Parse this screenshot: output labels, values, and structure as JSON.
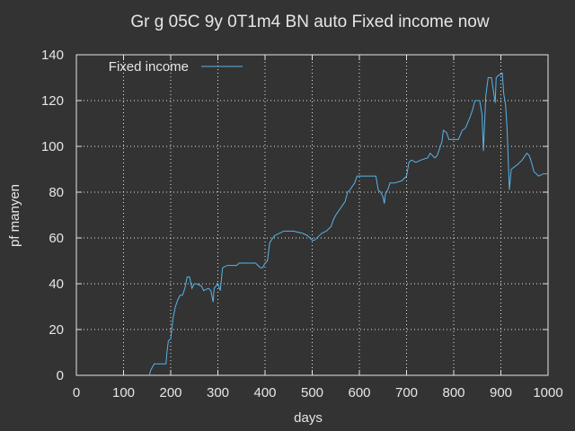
{
  "chart_data": {
    "type": "line",
    "title": "Gr g 05C 9y 0T1m4 BN auto Fixed income now",
    "x_label": "days",
    "y_label": "pf manyen",
    "xlim": [
      0,
      1000
    ],
    "xticks": [
      0,
      100,
      200,
      300,
      400,
      500,
      600,
      700,
      800,
      900,
      1000
    ],
    "ylim": [
      0,
      140
    ],
    "yticks": [
      0,
      20,
      40,
      60,
      80,
      100,
      120,
      140
    ],
    "grid": true,
    "legend": "top-left",
    "x": [
      155,
      157,
      165,
      190,
      192,
      195,
      200,
      205,
      210,
      215,
      220,
      225,
      230,
      235,
      240,
      245,
      250,
      255,
      265,
      270,
      280,
      285,
      290,
      292,
      300,
      305,
      310,
      320,
      340,
      345,
      380,
      385,
      390,
      395,
      400,
      405,
      410,
      420,
      430,
      440,
      460,
      480,
      490,
      500,
      505,
      515,
      520,
      530,
      540,
      545,
      550,
      560,
      570,
      575,
      580,
      590,
      595,
      635,
      640,
      645,
      650,
      653,
      655,
      660,
      665,
      675,
      690,
      700,
      705,
      710,
      720,
      730,
      745,
      750,
      760,
      765,
      775,
      778,
      785,
      790,
      800,
      810,
      818,
      825,
      835,
      840,
      845,
      855,
      860,
      863,
      868,
      873,
      880,
      888,
      890,
      895,
      903,
      906,
      910,
      913,
      918,
      922,
      935,
      945,
      955,
      960,
      965,
      970,
      980,
      990,
      998
    ],
    "series": [
      {
        "name": "Fixed income",
        "color": "#56b4e9",
        "values": [
          0,
          2,
          5,
          5,
          10,
          15,
          16,
          25,
          30,
          33,
          35,
          35,
          38,
          43,
          43,
          38,
          40,
          40,
          39,
          37,
          38,
          37,
          32,
          38,
          40,
          37,
          47,
          48,
          48,
          49,
          49,
          48,
          47,
          47,
          49,
          50,
          58,
          61,
          62,
          63,
          63,
          62,
          61,
          59,
          59,
          61,
          62,
          63,
          65,
          68,
          70,
          73,
          76,
          80,
          81,
          84,
          87,
          87,
          81,
          80,
          78,
          75,
          79,
          81,
          84,
          84,
          85,
          87,
          93,
          94,
          93,
          94,
          95,
          97,
          95,
          96,
          102,
          107,
          106,
          103,
          103,
          103,
          107,
          108,
          113,
          116,
          120,
          120,
          114,
          98,
          122,
          130,
          130,
          119,
          130,
          131,
          132,
          123,
          118,
          108,
          81,
          90,
          92,
          94,
          97,
          96,
          93,
          89,
          87,
          88,
          88
        ]
      }
    ]
  }
}
